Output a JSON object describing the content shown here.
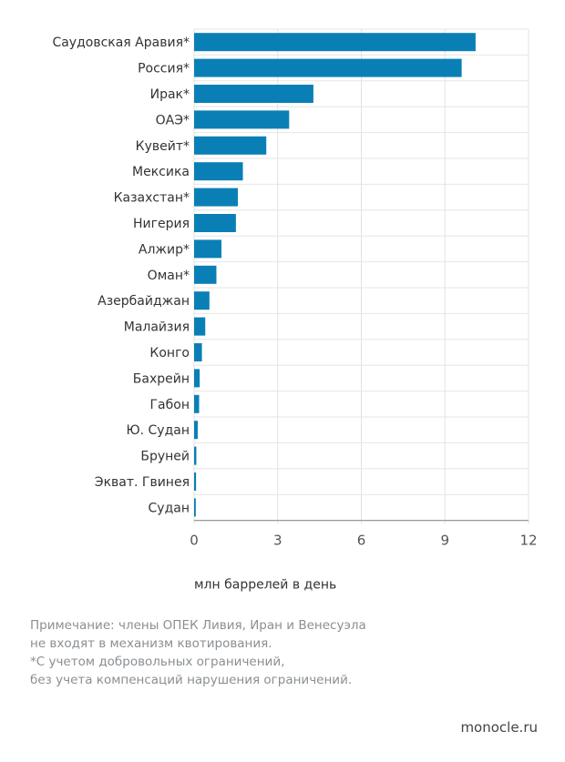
{
  "chart_data": {
    "type": "bar",
    "orientation": "horizontal",
    "categories": [
      "Саудовская Аравия*",
      "Россия*",
      "Ирак*",
      "ОАЭ*",
      "Кувейт*",
      "Мексика",
      "Казахстан*",
      "Нигерия",
      "Алжир*",
      "Оман*",
      "Азербайджан",
      "Малайзия",
      "Конго",
      "Бахрейн",
      "Габон",
      "Ю. Судан",
      "Бруней",
      "Экват. Гвинея",
      "Судан"
    ],
    "values": [
      10.1,
      9.6,
      4.28,
      3.41,
      2.59,
      1.75,
      1.57,
      1.5,
      0.98,
      0.8,
      0.55,
      0.4,
      0.28,
      0.2,
      0.18,
      0.13,
      0.08,
      0.07,
      0.06
    ],
    "xlabel": "млн баррелей в день",
    "xlim": [
      0,
      12
    ],
    "xticks": [
      "0",
      "3",
      "6",
      "9",
      "12"
    ],
    "grid": true,
    "bar_color": "#0a7fb5"
  },
  "note": [
    "Примечание: члены ОПЕК Ливия, Иран и Венесуэла",
    "не входят в механизм квотирования.",
    "*С учетом добровольных ограничений,",
    "без учета компенсаций нарушения ограничений."
  ],
  "source": "monocle.ru"
}
